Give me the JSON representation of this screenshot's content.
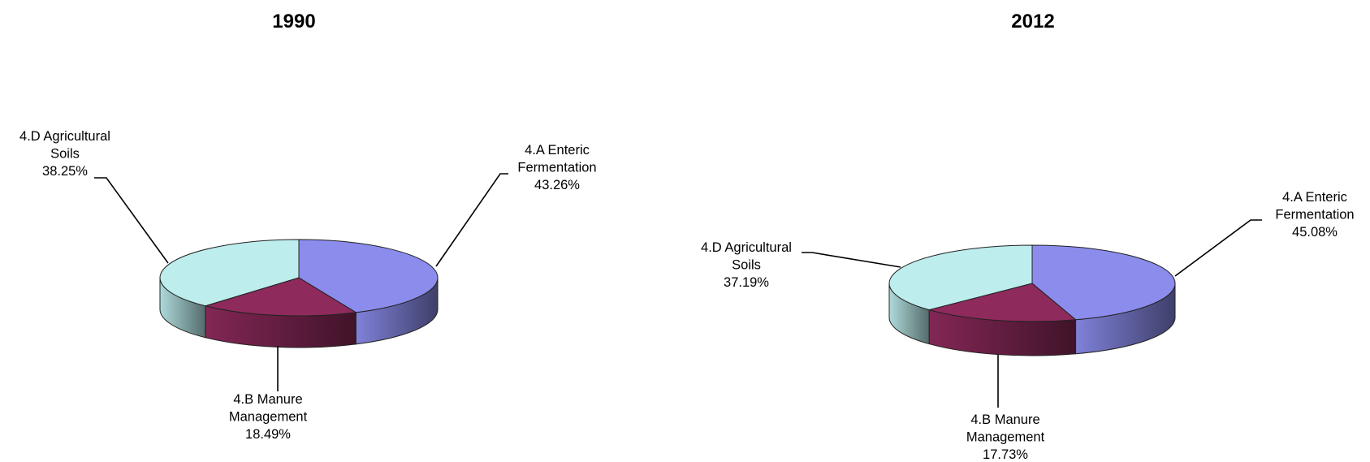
{
  "chart_data": [
    {
      "type": "pie",
      "title": "1990",
      "categories": [
        "4.A Enteric Fermentation",
        "4.B Manure Management",
        "4.D Agricultural Soils"
      ],
      "values": [
        43.26,
        18.49,
        38.25
      ],
      "value_labels": [
        "43.26%",
        "18.49%",
        "38.25%"
      ],
      "label_lines": [
        [
          "4.A Enteric",
          "Fermentation",
          "43.26%"
        ],
        [
          "4.B Manure",
          "Management",
          "18.49%"
        ],
        [
          "4.D Agricultural",
          "Soils",
          "38.25%"
        ]
      ],
      "colors": [
        "#8b8cec",
        "#8e2a5c",
        "#bdeded"
      ],
      "style": "3d",
      "legend": "none"
    },
    {
      "type": "pie",
      "title": "2012",
      "categories": [
        "4.A Enteric Fermentation",
        "4.B Manure Management",
        "4.D Agricultural Soils"
      ],
      "values": [
        45.08,
        17.73,
        37.19
      ],
      "value_labels": [
        "45.08%",
        "17.73%",
        "37.19%"
      ],
      "label_lines": [
        [
          "4.A Enteric",
          "Fermentation",
          "45.08%"
        ],
        [
          "4.B Manure",
          "Management",
          "17.73%"
        ],
        [
          "4.D Agricultural",
          "Soils",
          "37.19%"
        ]
      ],
      "colors": [
        "#8b8cec",
        "#8e2a5c",
        "#bdeded"
      ],
      "style": "3d",
      "legend": "none"
    }
  ]
}
